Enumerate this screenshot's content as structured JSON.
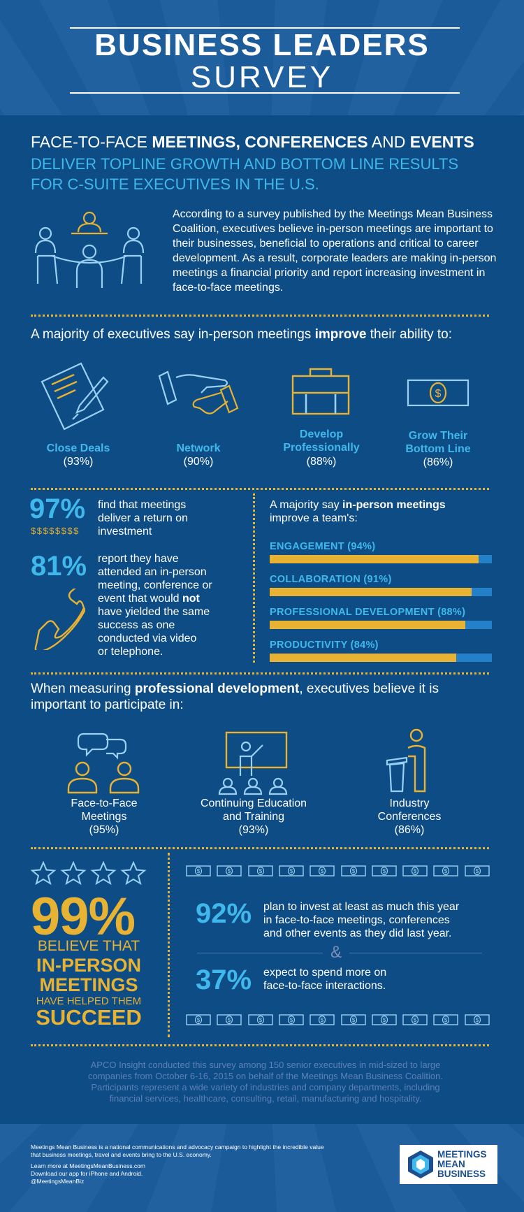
{
  "header": {
    "title": "BUSINESS LEADERS",
    "subtitle": "SURVEY"
  },
  "intro": {
    "line1_pre": "FACE-TO-FACE ",
    "line1_bold1": "MEETINGS, CONFERENCES",
    "line1_mid": " AND ",
    "line1_bold2": "EVENTS",
    "line2": "DELIVER TOPLINE GROWTH AND BOTTOM LINE RESULTS",
    "line3": "FOR C-SUITE EXECUTIVES IN THE U.S.",
    "paragraph": "According to a survey published by the Meetings Mean Business Coalition, executives believe in-person meetings are important to their businesses, beneficial to operations and critical to career development. As a result, corporate leaders are making in-person meetings a financial priority and report increasing investment in face-to-face meetings."
  },
  "majority": {
    "pre": "A majority of executives say in-person meetings ",
    "bold": "improve",
    "post": " their ability to:",
    "items": [
      {
        "label": "Close Deals",
        "pct": "(93%)",
        "icon": "contract-pen-icon"
      },
      {
        "label": "Network",
        "pct": "(90%)",
        "icon": "handshake-icon"
      },
      {
        "label": "Develop Professionally",
        "label1": "Develop",
        "label2": "Professionally",
        "pct": "(88%)",
        "icon": "briefcase-icon"
      },
      {
        "label": "Grow Their Bottom Line",
        "label1": "Grow Their",
        "label2": "Bottom Line",
        "pct": "(86%)",
        "icon": "dollar-bill-icon"
      }
    ]
  },
  "roi": {
    "pct": "97%",
    "dollars": "$$$$$$$$",
    "line1": "find that meetings",
    "line2": "deliver a return on",
    "line3": "investment"
  },
  "video": {
    "pct": "81%",
    "line1": "report they have",
    "line2": "attended an in-person",
    "line3": "meeting, conference or",
    "line4_pre": "event that would ",
    "line4_bold": "not",
    "line5": "have yielded the same",
    "line6": "success as one",
    "line7": "conducted via video",
    "line8": "or telephone."
  },
  "team": {
    "pre": "A majority say ",
    "bold": "in-person meetings",
    "line2": "improve a team's:"
  },
  "chart_data": {
    "type": "bar",
    "categories": [
      "ENGAGEMENT",
      "COLLABORATION",
      "PROFESSIONAL DEVELOPMENT",
      "PRODUCTIVITY"
    ],
    "labels": [
      "ENGAGEMENT (94%)",
      "COLLABORATION (91%)",
      "PROFESSIONAL DEVELOPMENT (88%)",
      "PRODUCTIVITY (84%)"
    ],
    "values": [
      94,
      91,
      88,
      84
    ],
    "ylim": [
      0,
      100
    ],
    "colors": {
      "fill": "#e8b232",
      "track": "#2480c8"
    }
  },
  "profdev": {
    "pre": "When measuring ",
    "bold": "professional development",
    "post": ", executives believe it is",
    "line2": "important to participate in:",
    "items": [
      {
        "line1": "Face-to-Face",
        "line2": "Meetings",
        "pct": "(95%)",
        "icon": "people-chat-icon"
      },
      {
        "line1": "Continuing Education",
        "line2": "and Training",
        "pct": "(93%)",
        "icon": "presentation-icon"
      },
      {
        "line1": "Industry",
        "line2": "Conferences",
        "pct": "(86%)",
        "icon": "podium-icon"
      }
    ]
  },
  "succeed": {
    "pct": "99%",
    "l1": "BELIEVE THAT",
    "l2": "IN-PERSON",
    "l3": "MEETINGS",
    "l4": "HAVE HELPED THEM",
    "l5": "SUCCEED"
  },
  "invest": {
    "pct1": "92%",
    "txt1_1": "plan to invest at least as much this year",
    "txt1_2": "in face-to-face meetings, conferences",
    "txt1_3": "and other events as they did last year.",
    "amp": "&",
    "pct2": "37%",
    "txt2_1": "expect to spend more on",
    "txt2_2": "face-to-face interactions."
  },
  "methodology": "APCO Insight conducted this survey among 150 senior executives in mid-sized to large companies from October 6-16, 2015 on behalf of the Meetings Mean Business Coalition. Participants represent a wide variety of industries and company departments, including financial services, healthcare, consulting, retail, manufacturing and hospitality.",
  "footer": {
    "about": "Meetings Mean Business is a national communications and advocacy campaign to highlight the incredible value that business meetings, travel and events bring to the U.S. economy.",
    "learn": "Learn more at MeetingsMeanBusiness.com",
    "app": "Download our app for iPhone and Android.",
    "handle": "@MeetingsMeanBiz",
    "logo1": "MEETINGS",
    "logo2": "MEAN",
    "logo3": "BUSINESS"
  },
  "colors": {
    "bg": "#0e4c86",
    "accent_blue": "#3fb8ec",
    "accent_gold": "#e8b232"
  }
}
